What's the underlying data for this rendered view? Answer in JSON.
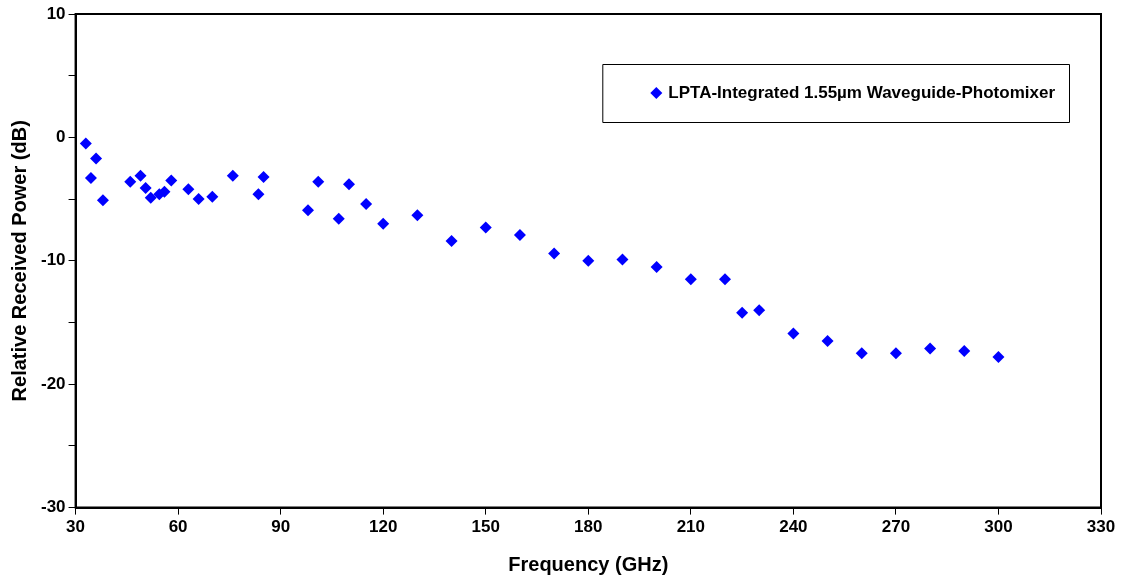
{
  "chart_data": {
    "type": "scatter",
    "xlabel": "Frequency (GHz)",
    "ylabel": "Relative Received Power (dB)",
    "xlim": [
      30,
      330
    ],
    "xticks": [
      30,
      60,
      90,
      120,
      150,
      180,
      210,
      240,
      270,
      300,
      330
    ],
    "ylim": [
      -30,
      10
    ],
    "yticks": [
      -30,
      {
        "value": -25,
        "label": null
      },
      -20,
      {
        "value": -15,
        "label": null
      },
      -10,
      {
        "value": -5,
        "label": null
      },
      0,
      {
        "value": 5,
        "label": null
      },
      10
    ],
    "grid": false,
    "legend": "top right",
    "marker": "diamond",
    "series": [
      {
        "name": "LPTA-Integrated 1.55µm Waveguide-Photomixer",
        "color": "#0000ff",
        "x": [
          33,
          34.5,
          36,
          38,
          46,
          49,
          50.5,
          52,
          54.5,
          56,
          58,
          63,
          66,
          70,
          76,
          83.5,
          85,
          98,
          101,
          107,
          110,
          115,
          120,
          130,
          140,
          150,
          160,
          170,
          180,
          190,
          200,
          210,
          220,
          225,
          230,
          240,
          250,
          260,
          270,
          280,
          290,
          300
        ],
        "values": [
          -0.5,
          -3.3,
          -1.7,
          -5.1,
          -3.6,
          -3.1,
          -4.1,
          -4.9,
          -4.6,
          -4.4,
          -3.5,
          -4.2,
          -5.0,
          -4.8,
          -3.1,
          -4.6,
          -3.2,
          -5.9,
          -3.6,
          -6.6,
          -3.8,
          -5.4,
          -7.0,
          -6.3,
          -8.4,
          -7.3,
          -7.9,
          -9.4,
          -10.0,
          -9.9,
          -10.5,
          -11.5,
          -11.5,
          -14.2,
          -14.0,
          -15.9,
          -16.5,
          -17.5,
          -17.5,
          -17.1,
          -17.3,
          -17.8
        ]
      }
    ]
  }
}
